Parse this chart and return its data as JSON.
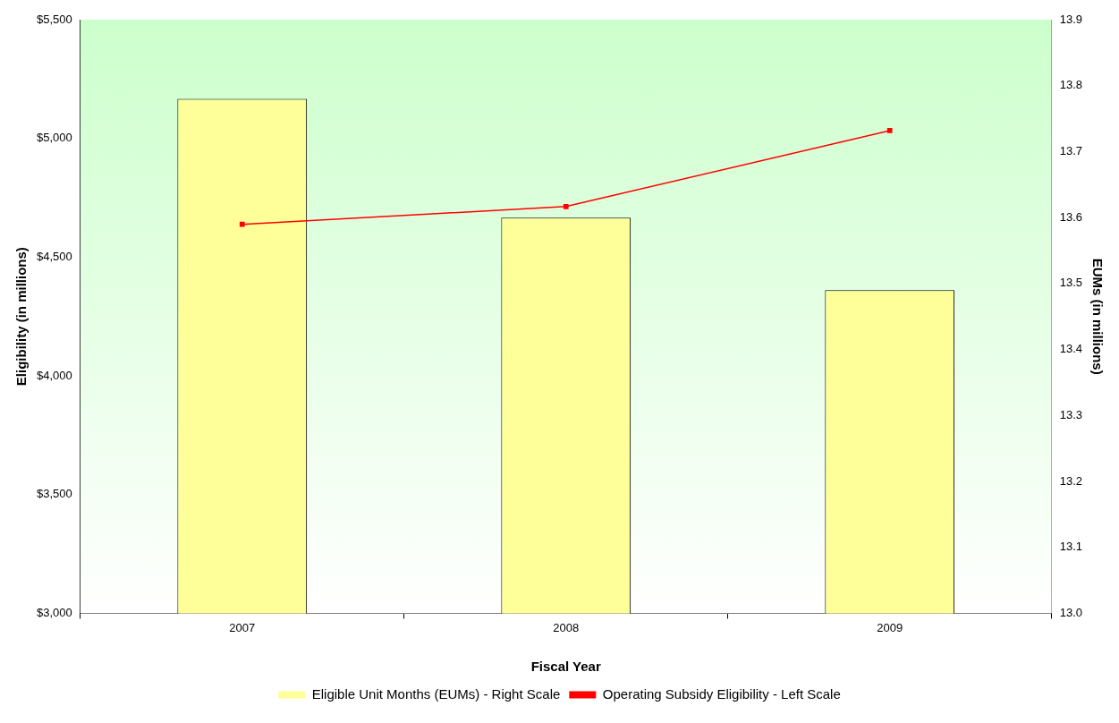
{
  "chart_data": {
    "type": "bar",
    "xlabel": "Fiscal Year",
    "ylabel": "Eligibility (in millions)",
    "y2label": "EUMs (in millions)",
    "categories": [
      "2007",
      "2008",
      "2009"
    ],
    "series": [
      {
        "name": "Eligible Unit Months (EUMs) - Right Scale",
        "axis": "y2",
        "color": "#ffff99",
        "values": [
          13.78,
          13.6,
          13.49
        ]
      },
      {
        "name": "Operating Subsidy Eligibility - Left Scale",
        "type": "line",
        "axis": "y",
        "color": "#ff0000",
        "marker": "square",
        "values": [
          4638,
          4713,
          5033
        ]
      }
    ],
    "ylim": [
      3000,
      5500
    ],
    "yticks": [
      {
        "value": 3000,
        "label": "$3,000"
      },
      {
        "value": 3500,
        "label": "$3,500"
      },
      {
        "value": 4000,
        "label": "$4,000"
      },
      {
        "value": 4500,
        "label": "$4,500"
      },
      {
        "value": 5000,
        "label": "$5,000"
      },
      {
        "value": 5500,
        "label": "$5,500"
      }
    ],
    "y2lim": [
      13.0,
      13.9
    ],
    "y2ticks": [
      {
        "value": 13.0,
        "label": "13.0"
      },
      {
        "value": 13.1,
        "label": "13.1"
      },
      {
        "value": 13.2,
        "label": "13.2"
      },
      {
        "value": 13.3,
        "label": "13.3"
      },
      {
        "value": 13.4,
        "label": "13.4"
      },
      {
        "value": 13.5,
        "label": "13.5"
      },
      {
        "value": 13.6,
        "label": "13.6"
      },
      {
        "value": 13.7,
        "label": "13.7"
      },
      {
        "value": 13.8,
        "label": "13.8"
      },
      {
        "value": 13.9,
        "label": "13.9"
      }
    ],
    "grid": false,
    "legend": "bottom"
  }
}
